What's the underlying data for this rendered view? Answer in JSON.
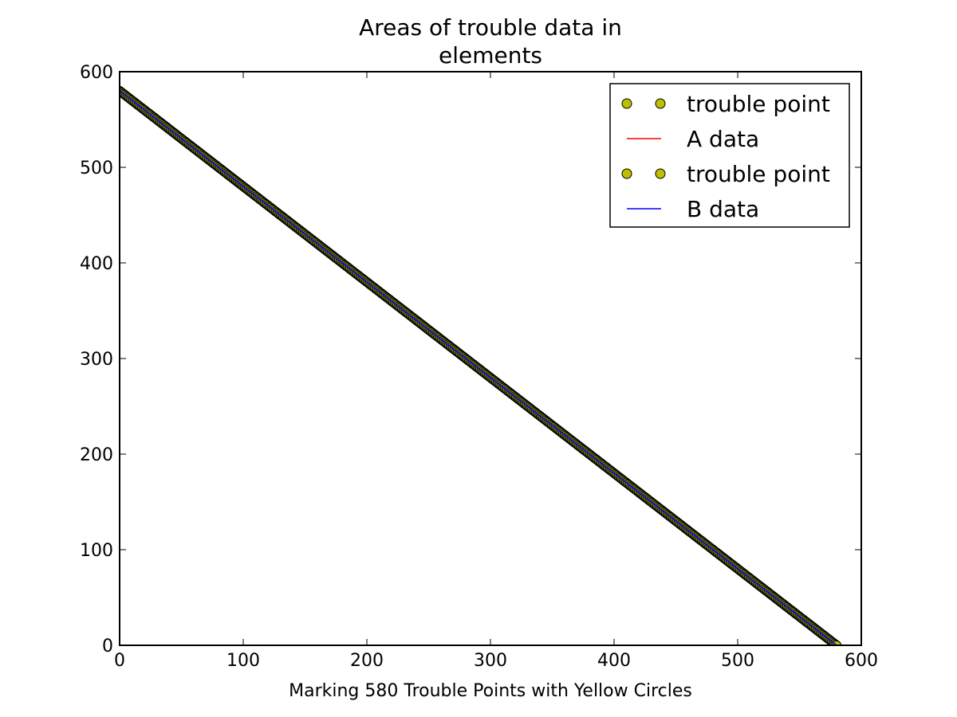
{
  "chart_data": {
    "type": "scatter",
    "title_lines": [
      "Areas of trouble data in",
      "elements"
    ],
    "xlabel": "Marking 580 Trouble Points with Yellow Circles",
    "ylabel": "",
    "xlim": [
      0,
      600
    ],
    "ylim": [
      0,
      600
    ],
    "xticks": [
      0,
      100,
      200,
      300,
      400,
      500,
      600
    ],
    "yticks": [
      0,
      100,
      200,
      300,
      400,
      500,
      600
    ],
    "grid": false,
    "legend_position": "top-right",
    "series": [
      {
        "name": "trouble point",
        "kind": "markers",
        "color": "#bfbf00",
        "edge_color": "#000000",
        "x_start": 0,
        "x_end": 580,
        "y_start": 580,
        "y_end": 0,
        "count": 580
      },
      {
        "name": "A data",
        "kind": "line",
        "color": "#ff0000",
        "x": [
          0,
          580
        ],
        "y": [
          580,
          0
        ]
      },
      {
        "name": "trouble point",
        "kind": "markers",
        "color": "#bfbf00",
        "edge_color": "#000000",
        "x_start": 0,
        "x_end": 580,
        "y_start": 580,
        "y_end": 0,
        "count": 580
      },
      {
        "name": "B data",
        "kind": "line",
        "color": "#0000ff",
        "x": [
          0,
          580
        ],
        "y": [
          580,
          0
        ]
      }
    ]
  }
}
